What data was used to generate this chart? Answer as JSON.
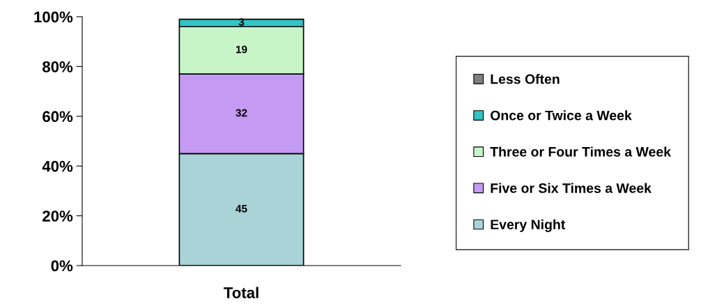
{
  "chart_data": {
    "type": "bar",
    "stacked": true,
    "categories": [
      "Total"
    ],
    "series": [
      {
        "name": "Every Night",
        "color": "#a9d3d6",
        "values": [
          45
        ]
      },
      {
        "name": "Five or Six Times a Week",
        "color": "#c49af2",
        "values": [
          32
        ]
      },
      {
        "name": "Three or Four Times a Week",
        "color": "#c8f5c8",
        "values": [
          19
        ]
      },
      {
        "name": "Once or Twice a Week",
        "color": "#33c4c4",
        "values": [
          3
        ]
      },
      {
        "name": "Less Often",
        "color": "#808080",
        "values": [
          null
        ]
      }
    ],
    "data_labels": true,
    "ylim": [
      0,
      100
    ],
    "yticks": [
      {
        "value": 0,
        "label": "0%"
      },
      {
        "value": 20,
        "label": "20%"
      },
      {
        "value": 40,
        "label": "40%"
      },
      {
        "value": 60,
        "label": "60%"
      },
      {
        "value": 80,
        "label": "80%"
      },
      {
        "value": 100,
        "label": "100%"
      }
    ],
    "grid": false,
    "legend": "right"
  }
}
